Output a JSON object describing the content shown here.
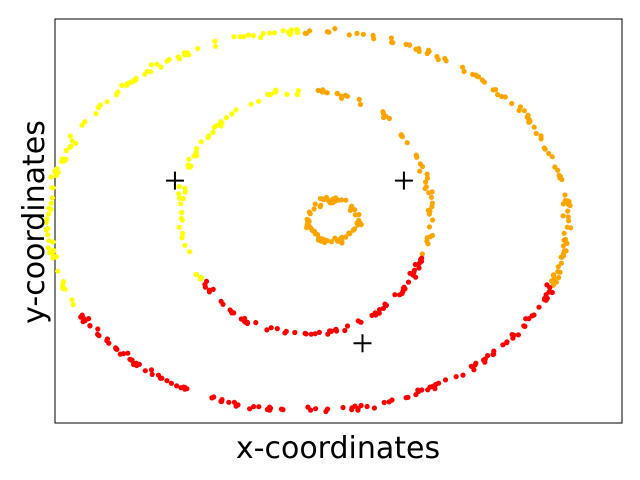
{
  "chart_data": {
    "type": "scatter",
    "title": "",
    "xlabel": "x-coordinates",
    "ylabel": "y-coordinates",
    "xlim": [
      -2.6,
      2.6
    ],
    "ylim": [
      -1.9,
      1.9
    ],
    "grid": false,
    "ticks_visible": false,
    "colors": {
      "cluster_yellow": "#ffff00",
      "cluster_orange": "#ffa500",
      "cluster_red": "#ff0000",
      "centroid": "#000000"
    },
    "rings": [
      {
        "radius": 0.22,
        "ry_scale": 0.9,
        "count": 70,
        "noise": 0.035,
        "note_shape": "inner"
      },
      {
        "radius": 1.15,
        "ry_scale": 1.0,
        "count": 170,
        "noise": 0.03,
        "note_shape": "middle"
      },
      {
        "radius": 2.38,
        "ry_scale": 0.75,
        "count": 330,
        "noise": 0.035,
        "note_shape": "outer"
      }
    ],
    "series": [
      {
        "color": "#ffff00",
        "description_points": "angles 90-230 deg on middle and outer rings"
      },
      {
        "color": "#ffa500",
        "description_points": "inner ring and angles -20-90 deg on middle and outer rings"
      },
      {
        "color": "#ff0000",
        "description_points": "angles 200-340 deg on middle and outer rings"
      }
    ],
    "centroids": [
      {
        "x": -1.5,
        "y": 0.38
      },
      {
        "x": 0.6,
        "y": 0.38
      },
      {
        "x": 0.22,
        "y": -1.15
      }
    ]
  }
}
